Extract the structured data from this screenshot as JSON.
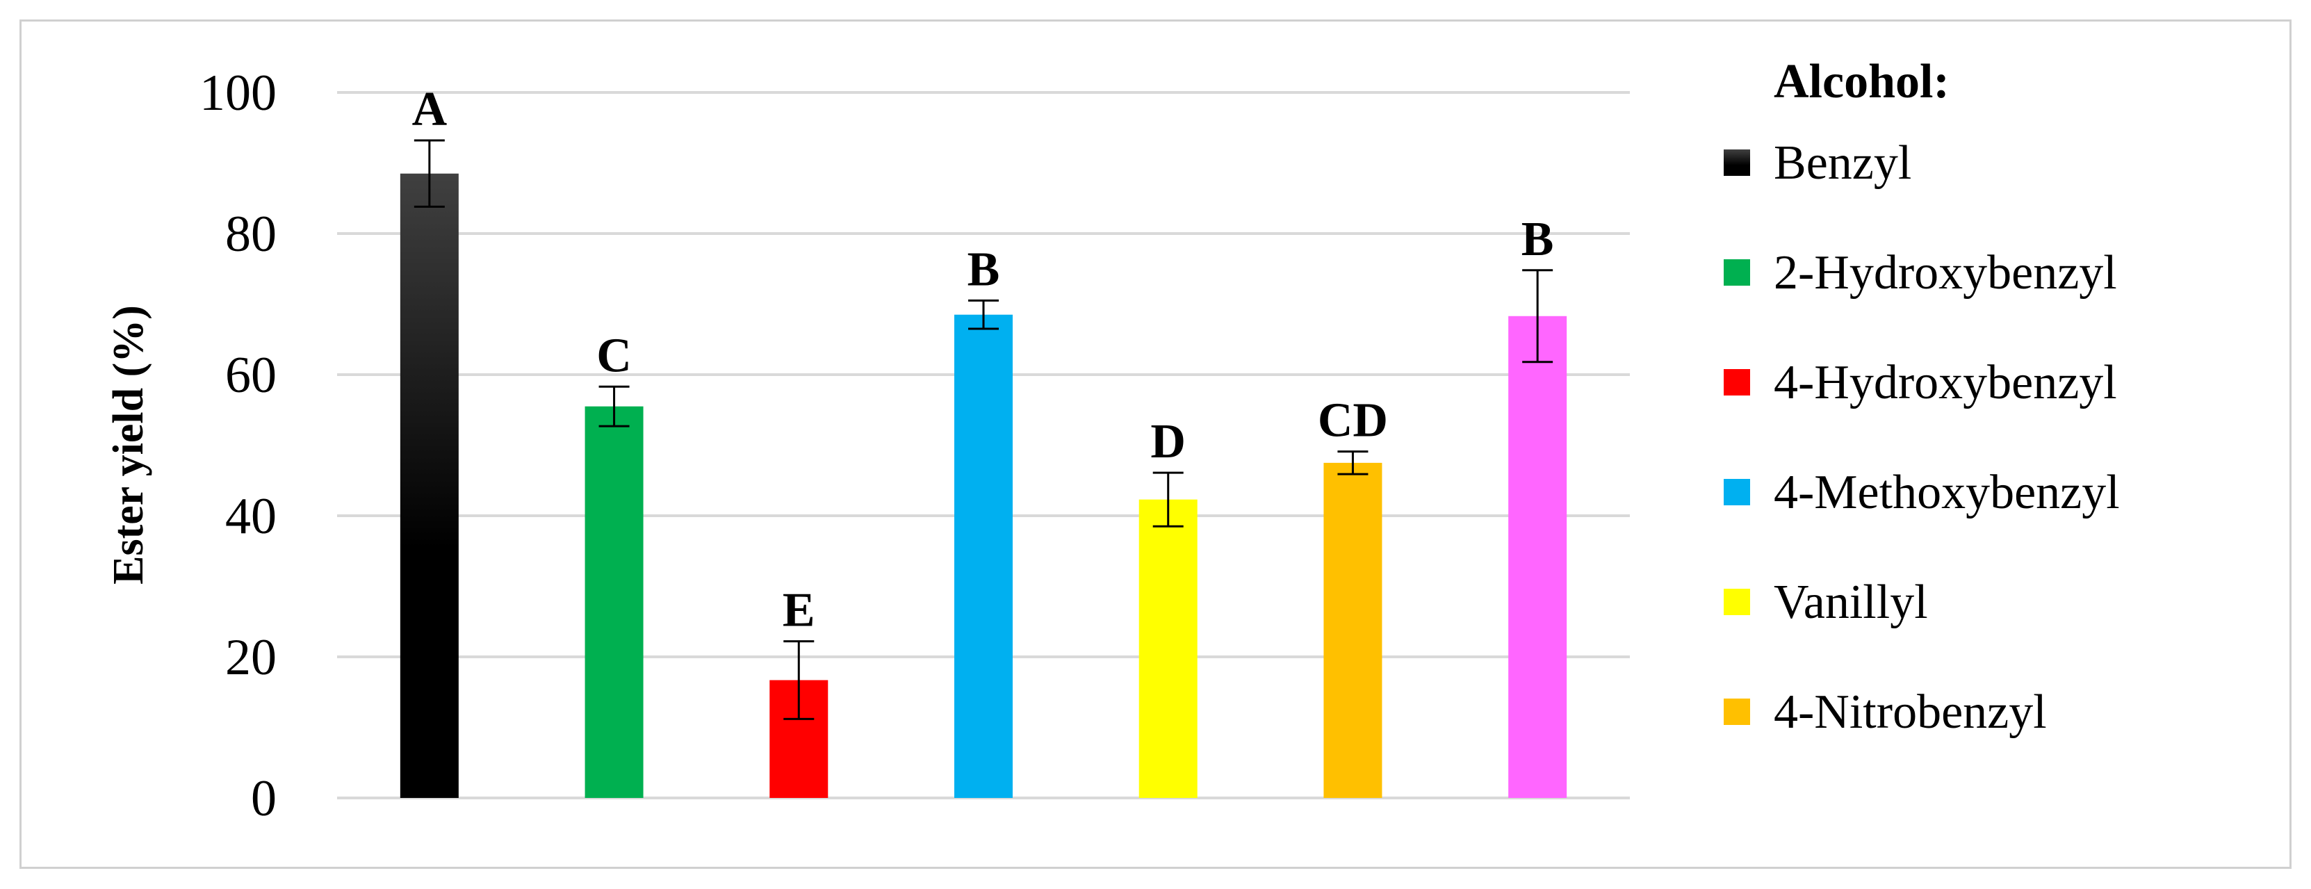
{
  "chart_data": {
    "type": "bar",
    "title": "",
    "xlabel": "",
    "ylabel": "Ester yield (%)",
    "ylim": [
      0,
      100
    ],
    "yticks": [
      0,
      20,
      40,
      60,
      80,
      100
    ],
    "grid": true,
    "legend_title": "Alcohol:",
    "legend_position": "right",
    "bars": [
      {
        "name": "Benzyl",
        "value": 88.5,
        "error": 4.7,
        "letter": "A",
        "color": "#000000",
        "gradient": true
      },
      {
        "name": "2-Hydroxybenzyl",
        "value": 55.5,
        "error": 2.8,
        "letter": "C",
        "color": "#00b050"
      },
      {
        "name": "4-Hydroxybenzyl",
        "value": 16.7,
        "error": 5.5,
        "letter": "E",
        "color": "#ff0000"
      },
      {
        "name": "4-Methoxybenzyl",
        "value": 68.5,
        "error": 2.0,
        "letter": "B",
        "color": "#00b0f0"
      },
      {
        "name": "Vanillyl",
        "value": 42.3,
        "error": 3.8,
        "letter": "D",
        "color": "#ffff00"
      },
      {
        "name": "4-Nitrobenzyl",
        "value": 47.5,
        "error": 1.6,
        "letter": "CD",
        "color": "#ffc000"
      },
      {
        "name": "",
        "value": 68.3,
        "error": 6.5,
        "letter": "B",
        "color": "#ff66ff"
      }
    ],
    "legend": [
      {
        "label": "Benzyl",
        "color": "#000000"
      },
      {
        "label": "2-Hydroxybenzyl",
        "color": "#00b050"
      },
      {
        "label": "4-Hydroxybenzyl",
        "color": "#ff0000"
      },
      {
        "label": "4-Methoxybenzyl",
        "color": "#00b0f0"
      },
      {
        "label": "Vanillyl",
        "color": "#ffff00"
      },
      {
        "label": "4-Nitrobenzyl",
        "color": "#ffc000"
      }
    ]
  }
}
